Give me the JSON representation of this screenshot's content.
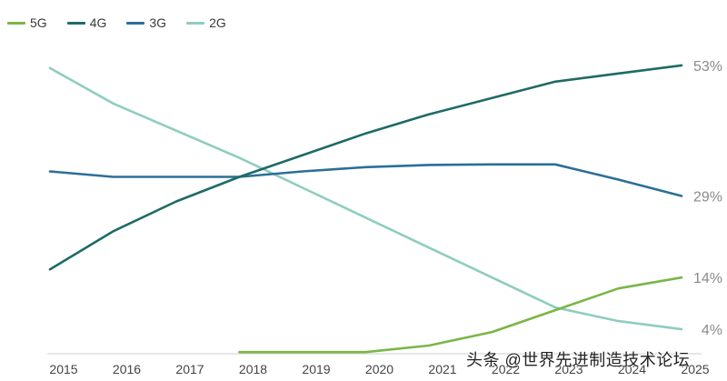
{
  "chart_data": {
    "type": "line",
    "title": "",
    "xlabel": "",
    "ylabel": "",
    "x": [
      "2015",
      "2016",
      "2017",
      "2018",
      "2019",
      "2020",
      "2021",
      "2022",
      "2023",
      "2024",
      "2025"
    ],
    "ylim": [
      0,
      61
    ],
    "grid": false,
    "legend_position": "top-left",
    "series": [
      {
        "name": "5G",
        "color": "#7ab648",
        "values": [
          null,
          null,
          null,
          0.3,
          0.3,
          0.3,
          1.5,
          4,
          8,
          12,
          14
        ],
        "end_label": "14%"
      },
      {
        "name": "4G",
        "color": "#1e6b66",
        "values": [
          15.5,
          22.5,
          28,
          32.5,
          36.5,
          40.5,
          44,
          47,
          50,
          51.5,
          53
        ],
        "end_label": "53%"
      },
      {
        "name": "3G",
        "color": "#2b6f98",
        "values": [
          33.5,
          32.5,
          32.5,
          32.5,
          33.5,
          34.3,
          34.7,
          34.8,
          34.8,
          32,
          29
        ],
        "end_label": "29%"
      },
      {
        "name": "2G",
        "color": "#8ecdc0",
        "values": [
          52.5,
          46,
          41,
          36,
          30.5,
          25,
          19.5,
          14,
          8.5,
          6,
          4.5
        ],
        "end_label": "4%"
      }
    ]
  },
  "watermark": "头条 @世界先进制造技术论坛"
}
